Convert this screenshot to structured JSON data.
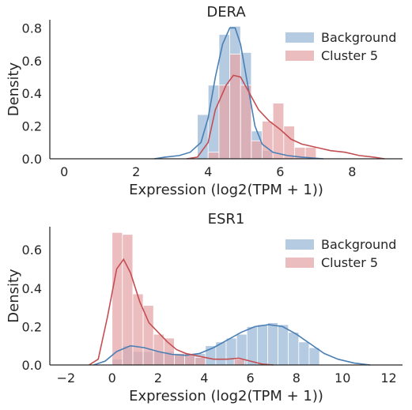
{
  "colors": {
    "background": "#4a7fb5",
    "cluster": "#c44e52",
    "bg_fill": "#a7c2dd",
    "cl_fill": "#e6a7a9"
  },
  "chart_data": [
    {
      "type": "histogram-kde",
      "title": "DERA",
      "xlabel": "Expression (log2(TPM + 1))",
      "ylabel": "Density",
      "xlim": [
        -0.4,
        9.4
      ],
      "ylim": [
        0,
        0.85
      ],
      "xticks": [
        0,
        2,
        4,
        6,
        8
      ],
      "yticks": [
        0.0,
        0.2,
        0.4,
        0.6,
        0.8
      ],
      "grid": false,
      "legend_position": "top-right",
      "series": [
        {
          "name": "Background",
          "bins": [
            [
              3.7,
              4.0,
              0.27
            ],
            [
              4.0,
              4.3,
              0.45
            ],
            [
              4.3,
              4.6,
              0.76
            ],
            [
              4.6,
              4.9,
              0.81
            ],
            [
              4.9,
              5.2,
              0.65
            ],
            [
              5.2,
              5.5,
              0.17
            ],
            [
              5.5,
              5.8,
              0.05
            ]
          ],
          "kde": [
            [
              2.5,
              0.0
            ],
            [
              2.8,
              0.01
            ],
            [
              3.2,
              0.02
            ],
            [
              3.5,
              0.04
            ],
            [
              3.8,
              0.1
            ],
            [
              4.0,
              0.25
            ],
            [
              4.2,
              0.5
            ],
            [
              4.4,
              0.7
            ],
            [
              4.6,
              0.8
            ],
            [
              4.75,
              0.8
            ],
            [
              4.9,
              0.7
            ],
            [
              5.1,
              0.45
            ],
            [
              5.3,
              0.2
            ],
            [
              5.5,
              0.09
            ],
            [
              5.8,
              0.04
            ],
            [
              6.2,
              0.02
            ],
            [
              6.6,
              0.01
            ],
            [
              7.2,
              0.0
            ]
          ]
        },
        {
          "name": "Cluster 5",
          "bins": [
            [
              3.7,
              4.0,
              0.0
            ],
            [
              4.0,
              4.3,
              0.04
            ],
            [
              4.3,
              4.6,
              0.45
            ],
            [
              4.6,
              4.9,
              0.64
            ],
            [
              4.9,
              5.2,
              0.45
            ],
            [
              5.2,
              5.5,
              0.11
            ],
            [
              5.5,
              5.8,
              0.23
            ],
            [
              5.8,
              6.1,
              0.34
            ],
            [
              6.1,
              6.4,
              0.2
            ],
            [
              6.4,
              6.7,
              0.07
            ],
            [
              6.7,
              7.0,
              0.07
            ]
          ],
          "kde": [
            [
              3.4,
              0.0
            ],
            [
              3.7,
              0.01
            ],
            [
              4.0,
              0.1
            ],
            [
              4.2,
              0.3
            ],
            [
              4.5,
              0.45
            ],
            [
              4.7,
              0.51
            ],
            [
              4.9,
              0.5
            ],
            [
              5.1,
              0.42
            ],
            [
              5.4,
              0.3
            ],
            [
              5.7,
              0.23
            ],
            [
              6.0,
              0.18
            ],
            [
              6.3,
              0.12
            ],
            [
              6.6,
              0.09
            ],
            [
              7.0,
              0.07
            ],
            [
              7.4,
              0.05
            ],
            [
              7.8,
              0.04
            ],
            [
              8.2,
              0.02
            ],
            [
              8.6,
              0.01
            ],
            [
              8.9,
              0.0
            ]
          ]
        }
      ]
    },
    {
      "type": "histogram-kde",
      "title": "ESR1",
      "xlabel": "Expression (log2(TPM + 1))",
      "ylabel": "Density",
      "xlim": [
        -2.7,
        12.6
      ],
      "ylim": [
        0,
        0.72
      ],
      "xticks": [
        -2,
        0,
        2,
        4,
        6,
        8,
        10,
        12
      ],
      "yticks": [
        0.0,
        0.2,
        0.4,
        0.6
      ],
      "grid": false,
      "legend_position": "top-right",
      "series": [
        {
          "name": "Background",
          "bins": [
            [
              0.0,
              0.45,
              0.03
            ],
            [
              0.45,
              0.9,
              0.1
            ],
            [
              0.9,
              1.35,
              0.07
            ],
            [
              1.35,
              1.8,
              0.07
            ],
            [
              1.8,
              2.25,
              0.07
            ],
            [
              2.25,
              2.7,
              0.07
            ],
            [
              2.7,
              3.15,
              0.06
            ],
            [
              3.15,
              3.6,
              0.06
            ],
            [
              3.6,
              4.05,
              0.06
            ],
            [
              4.05,
              4.5,
              0.1
            ],
            [
              4.5,
              4.95,
              0.12
            ],
            [
              4.95,
              5.4,
              0.14
            ],
            [
              5.4,
              5.85,
              0.16
            ],
            [
              5.85,
              6.3,
              0.2
            ],
            [
              6.3,
              6.75,
              0.21
            ],
            [
              6.75,
              7.2,
              0.22
            ],
            [
              7.2,
              7.65,
              0.21
            ],
            [
              7.65,
              8.1,
              0.17
            ],
            [
              8.1,
              8.55,
              0.12
            ],
            [
              8.55,
              9.0,
              0.09
            ]
          ],
          "kde": [
            [
              -0.8,
              0.0
            ],
            [
              -0.3,
              0.02
            ],
            [
              0.2,
              0.07
            ],
            [
              0.8,
              0.1
            ],
            [
              1.4,
              0.09
            ],
            [
              2.0,
              0.07
            ],
            [
              2.6,
              0.055
            ],
            [
              3.2,
              0.05
            ],
            [
              3.8,
              0.06
            ],
            [
              4.4,
              0.09
            ],
            [
              5.0,
              0.13
            ],
            [
              5.6,
              0.17
            ],
            [
              6.2,
              0.2
            ],
            [
              6.8,
              0.21
            ],
            [
              7.4,
              0.2
            ],
            [
              8.0,
              0.16
            ],
            [
              8.6,
              0.11
            ],
            [
              9.2,
              0.06
            ],
            [
              9.8,
              0.03
            ],
            [
              10.5,
              0.01
            ],
            [
              11.2,
              0.0
            ]
          ]
        },
        {
          "name": "Cluster 5",
          "bins": [
            [
              0.0,
              0.45,
              0.69
            ],
            [
              0.45,
              0.9,
              0.68
            ],
            [
              0.9,
              1.35,
              0.37
            ],
            [
              1.35,
              1.8,
              0.31
            ],
            [
              1.8,
              2.25,
              0.16
            ],
            [
              2.25,
              2.7,
              0.14
            ],
            [
              2.7,
              3.15,
              0.06
            ],
            [
              3.15,
              3.6,
              0.06
            ],
            [
              3.6,
              4.05,
              0.04
            ],
            [
              5.3,
              5.75,
              0.03
            ]
          ],
          "kde": [
            [
              -1.0,
              0.0
            ],
            [
              -0.6,
              0.03
            ],
            [
              -0.2,
              0.25
            ],
            [
              0.2,
              0.5
            ],
            [
              0.5,
              0.55
            ],
            [
              0.8,
              0.48
            ],
            [
              1.2,
              0.33
            ],
            [
              1.6,
              0.22
            ],
            [
              2.0,
              0.17
            ],
            [
              2.4,
              0.12
            ],
            [
              2.8,
              0.08
            ],
            [
              3.2,
              0.06
            ],
            [
              3.6,
              0.05
            ],
            [
              4.0,
              0.04
            ],
            [
              4.4,
              0.03
            ],
            [
              5.0,
              0.03
            ],
            [
              5.5,
              0.035
            ],
            [
              6.0,
              0.02
            ],
            [
              6.5,
              0.005
            ],
            [
              7.0,
              0.0
            ]
          ]
        }
      ]
    }
  ]
}
